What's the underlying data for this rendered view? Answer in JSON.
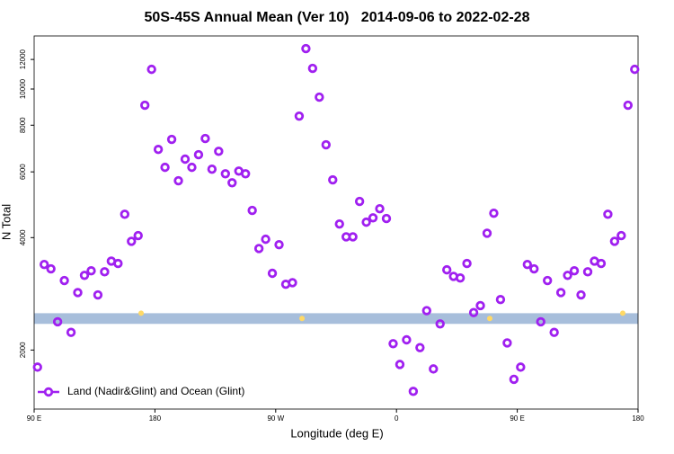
{
  "chart_data": {
    "type": "scatter",
    "title": "50S-45S Annual Mean (Ver 10)   2014-09-06 to 2022-02-28",
    "x_label": "Longitude (deg E)",
    "y_label": "N Total",
    "log_y": true,
    "xlim": [
      90,
      540
    ],
    "ylim": [
      1390,
      13870
    ],
    "xticks": [
      {
        "value": 90,
        "label": "90 E"
      },
      180,
      {
        "value": 270,
        "label": "90 W"
      },
      {
        "value": 360,
        "label": "0"
      },
      {
        "value": 450,
        "label": "90 E"
      },
      {
        "value": 540,
        "label": "180"
      }
    ],
    "yticks": [
      2000,
      4000,
      6000,
      8000,
      10000,
      12000
    ],
    "legend": "bottom-left",
    "band": {
      "color": "#a7bedb",
      "range": [
        2350,
        2510
      ]
    },
    "highlight_points": {
      "color": "#ffd966",
      "x": [
        169.7,
        289.6,
        429.5,
        528.6
      ],
      "values": [
        2510,
        2430,
        2430,
        2510
      ]
    },
    "series": [
      {
        "name": "Land (Nadir&Glint) and Ocean (Glint)",
        "color": "#a020f0",
        "x": [
          92.5,
          97.5,
          102.5,
          107.5,
          112.5,
          117.5,
          122.5,
          127.5,
          132.5,
          137.5,
          142.5,
          147.5,
          152.5,
          157.5,
          162.5,
          167.5,
          172.5,
          177.5,
          182.5,
          187.5,
          192.5,
          197.5,
          202.5,
          207.5,
          212.5,
          217.5,
          222.5,
          227.5,
          232.5,
          237.5,
          242.5,
          247.5,
          252.5,
          257.5,
          262.5,
          267.5,
          272.5,
          277.5,
          282.5,
          287.5,
          292.5,
          297.5,
          302.5,
          307.5,
          312.5,
          317.5,
          322.5,
          327.5,
          332.5,
          337.5,
          342.5,
          347.5,
          352.5,
          357.5,
          362.5,
          367.5,
          372.5,
          377.5,
          382.5,
          387.5,
          392.5,
          397.5,
          402.5,
          407.5,
          412.5,
          417.5,
          422.5,
          427.5,
          432.5,
          437.5,
          442.5,
          447.5,
          452.5,
          457.5,
          462.5,
          467.5,
          472.5,
          477.5,
          482.5,
          487.5,
          492.5,
          497.5,
          502.5,
          507.5,
          512.5,
          517.5,
          522.5,
          527.5,
          532.5,
          537.5
        ],
        "values": [
          1800,
          3390,
          3300,
          2380,
          3070,
          2230,
          2850,
          3170,
          3260,
          2810,
          3240,
          3460,
          3410,
          4620,
          3910,
          4050,
          9050,
          11290,
          6890,
          6170,
          7330,
          5680,
          6490,
          6170,
          6670,
          7370,
          6100,
          6810,
          5930,
          5610,
          6030,
          5930,
          4730,
          3740,
          3960,
          3210,
          3830,
          3000,
          3030,
          8460,
          12830,
          11360,
          9510,
          7090,
          5710,
          4350,
          4020,
          4020,
          5000,
          4400,
          4520,
          4780,
          4500,
          2080,
          1830,
          2130,
          1550,
          2030,
          2550,
          1780,
          2350,
          3280,
          3150,
          3120,
          3410,
          2520,
          2630,
          4110,
          4650,
          2730,
          2090,
          1670,
          1800,
          3390,
          3300,
          2380,
          3070,
          2230,
          2850,
          3170,
          3260,
          2810,
          3240,
          3460,
          3410,
          4620,
          3910,
          4050,
          9050,
          11290
        ]
      }
    ]
  }
}
